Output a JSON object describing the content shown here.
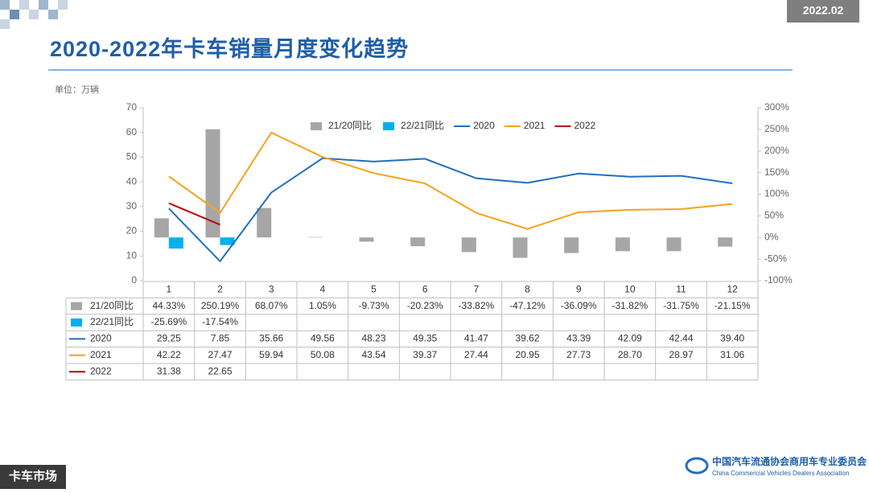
{
  "header": {
    "badge": "2022.02",
    "title": "2020-2022年卡车销量月度变化趋势",
    "unit": "单位：万辆"
  },
  "chart_data": {
    "type": "combo",
    "categories": [
      "1",
      "2",
      "3",
      "4",
      "5",
      "6",
      "7",
      "8",
      "9",
      "10",
      "11",
      "12"
    ],
    "ylim": [
      0,
      70
    ],
    "yticks": [
      0,
      10,
      20,
      30,
      40,
      50,
      60,
      70
    ],
    "y2lim": [
      -100,
      300
    ],
    "y2ticks": [
      {
        "value": -100,
        "label": "-100%"
      },
      {
        "value": -50,
        "label": "-50%"
      },
      {
        "value": 0,
        "label": "0%"
      },
      {
        "value": 50,
        "label": "50%"
      },
      {
        "value": 100,
        "label": "100%"
      },
      {
        "value": 150,
        "label": "150%"
      },
      {
        "value": 200,
        "label": "200%"
      },
      {
        "value": 250,
        "label": "250%"
      },
      {
        "value": 300,
        "label": "300%"
      }
    ],
    "grid": false,
    "series": [
      {
        "name": "21/20同比",
        "kind": "bar",
        "axis": "y2",
        "color": "#a6a6a6",
        "values": [
          44.33,
          250.19,
          68.07,
          1.05,
          -9.73,
          -20.23,
          -33.82,
          -47.12,
          -36.09,
          -31.82,
          -31.75,
          -21.15
        ],
        "value_labels": [
          "44.33%",
          "250.19%",
          "68.07%",
          "1.05%",
          "-9.73%",
          "-20.23%",
          "-33.82%",
          "-47.12%",
          "-36.09%",
          "-31.82%",
          "-31.75%",
          "-21.15%"
        ]
      },
      {
        "name": "22/21同比",
        "kind": "bar",
        "axis": "y2",
        "color": "#00b0f0",
        "values": [
          -25.69,
          -17.54,
          null,
          null,
          null,
          null,
          null,
          null,
          null,
          null,
          null,
          null
        ],
        "value_labels": [
          "-25.69%",
          "-17.54%",
          null,
          null,
          null,
          null,
          null,
          null,
          null,
          null,
          null,
          null
        ]
      },
      {
        "name": "2020",
        "kind": "line",
        "color": "#1f6fc0",
        "values": [
          29.25,
          7.85,
          35.66,
          49.56,
          48.23,
          49.35,
          41.47,
          39.62,
          43.39,
          42.09,
          42.44,
          39.4
        ],
        "value_labels": [
          "29.25",
          "7.85",
          "35.66",
          "49.56",
          "48.23",
          "49.35",
          "41.47",
          "39.62",
          "43.39",
          "42.09",
          "42.44",
          "39.40"
        ]
      },
      {
        "name": "2021",
        "kind": "line",
        "color": "#f7a21b",
        "values": [
          42.22,
          27.47,
          59.94,
          50.08,
          43.54,
          39.37,
          27.44,
          20.95,
          27.73,
          28.7,
          28.97,
          31.06
        ],
        "value_labels": [
          "42.22",
          "27.47",
          "59.94",
          "50.08",
          "43.54",
          "39.37",
          "27.44",
          "20.95",
          "27.73",
          "28.70",
          "28.97",
          "31.06"
        ]
      },
      {
        "name": "2022",
        "kind": "line",
        "color": "#c00000",
        "values": [
          31.38,
          22.65,
          null,
          null,
          null,
          null,
          null,
          null,
          null,
          null,
          null,
          null
        ],
        "value_labels": [
          "31.38",
          "22.65",
          null,
          null,
          null,
          null,
          null,
          null,
          null,
          null,
          null,
          null
        ]
      }
    ]
  },
  "footer": {
    "section": "卡车市场",
    "org": "中国汽车流通协会商用车专业委员会",
    "org_en": "China Commercial Vehicles Dealers Association"
  }
}
